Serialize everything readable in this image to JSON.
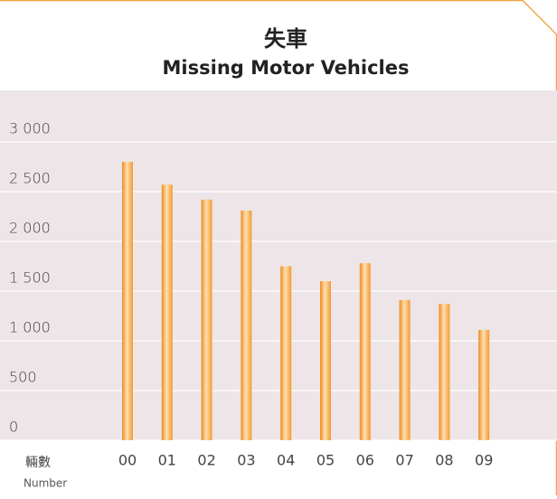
{
  "chart_data": {
    "type": "bar",
    "title": "失車",
    "subtitle": "Missing Motor Vehicles",
    "y_label_zh": "輛數",
    "y_label_en": "Number",
    "categories": [
      "00",
      "01",
      "02",
      "03",
      "04",
      "05",
      "06",
      "07",
      "08",
      "09"
    ],
    "values": [
      2800,
      2570,
      2420,
      2310,
      1750,
      1600,
      1780,
      1410,
      1370,
      1110
    ],
    "color": "#f7a23c",
    "ylim": [
      0,
      3000
    ],
    "yticks": [
      0,
      500,
      {
        "value": 1000,
        "label": "1 000"
      },
      {
        "value": 1500,
        "label": "1 500"
      },
      {
        "value": 2000,
        "label": "2 000"
      },
      {
        "value": 2500,
        "label": "2 500"
      },
      {
        "value": 3000,
        "label": "3 000"
      }
    ],
    "grid": true
  }
}
